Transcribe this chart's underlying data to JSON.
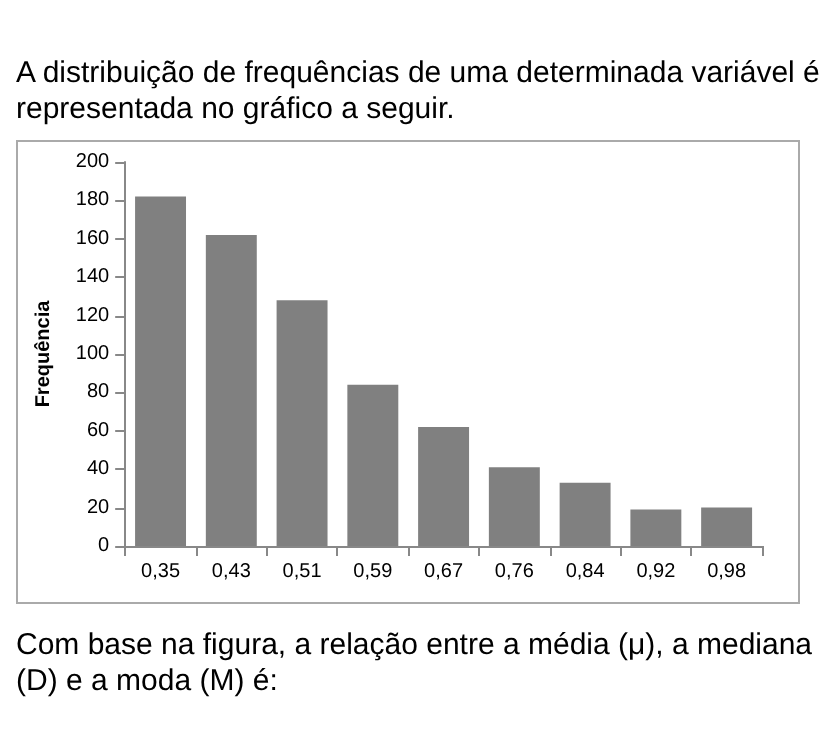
{
  "chart_data": {
    "type": "bar",
    "title": "A distribuição de frequências de uma determinada variável é representada no gráfico a seguir.",
    "ylabel": "Frequência",
    "categories": [
      "0,35",
      "0,43",
      "0,51",
      "0,59",
      "0,67",
      "0,76",
      "0,84",
      "0,92",
      "0,98"
    ],
    "values": [
      182,
      162,
      128,
      84,
      62,
      41,
      33,
      19,
      20
    ],
    "color": "#808080",
    "ylim": [
      0,
      200
    ],
    "yticks": [
      0,
      20,
      40,
      60,
      80,
      100,
      120,
      140,
      160,
      180,
      200
    ],
    "grid": false,
    "annotations": [
      "Com base na figura, a relação entre a média (μ), a mediana (D) e a moda (M) é:"
    ]
  }
}
